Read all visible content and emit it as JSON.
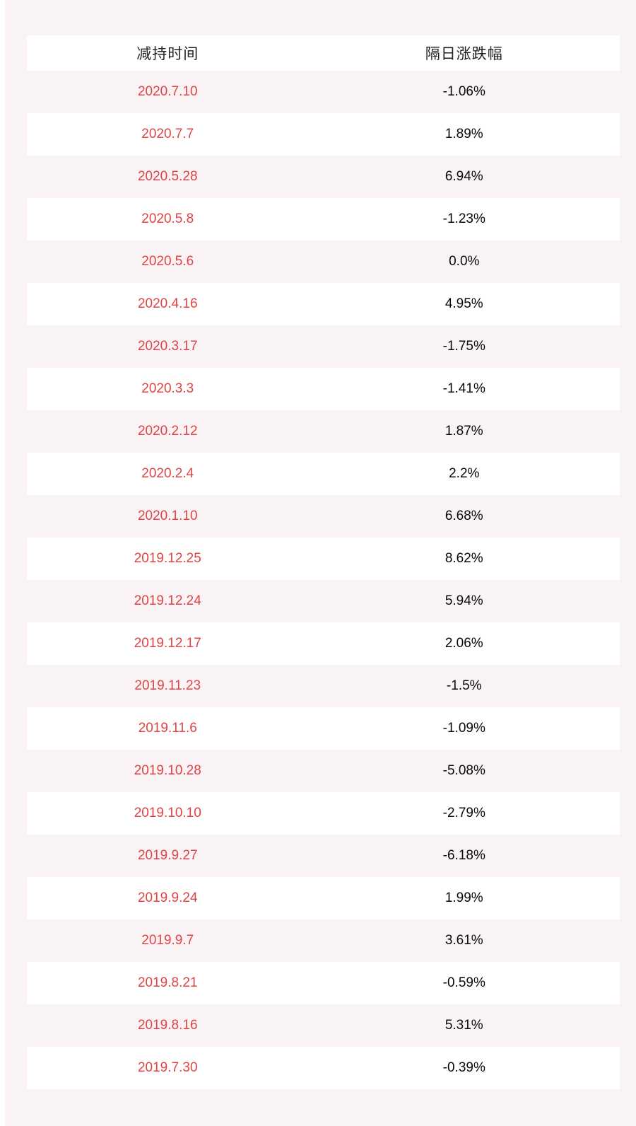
{
  "colors": {
    "page_background": "#f9f3f5",
    "row_white": "#ffffff",
    "date_red": "#e04444",
    "value_black": "#0a0a0a",
    "header_text": "#222222"
  },
  "table": {
    "columns": [
      "减持时间",
      "隔日涨跌幅"
    ],
    "rows": [
      {
        "date": "2020.7.10",
        "change": "-1.06%"
      },
      {
        "date": "2020.7.7",
        "change": "1.89%"
      },
      {
        "date": "2020.5.28",
        "change": "6.94%"
      },
      {
        "date": "2020.5.8",
        "change": "-1.23%"
      },
      {
        "date": "2020.5.6",
        "change": "0.0%"
      },
      {
        "date": "2020.4.16",
        "change": "4.95%"
      },
      {
        "date": "2020.3.17",
        "change": "-1.75%"
      },
      {
        "date": "2020.3.3",
        "change": "-1.41%"
      },
      {
        "date": "2020.2.12",
        "change": "1.87%"
      },
      {
        "date": "2020.2.4",
        "change": "2.2%"
      },
      {
        "date": "2020.1.10",
        "change": "6.68%"
      },
      {
        "date": "2019.12.25",
        "change": "8.62%"
      },
      {
        "date": "2019.12.24",
        "change": "5.94%"
      },
      {
        "date": "2019.12.17",
        "change": "2.06%"
      },
      {
        "date": "2019.11.23",
        "change": "-1.5%"
      },
      {
        "date": "2019.11.6",
        "change": "-1.09%"
      },
      {
        "date": "2019.10.28",
        "change": "-5.08%"
      },
      {
        "date": "2019.10.10",
        "change": "-2.79%"
      },
      {
        "date": "2019.9.27",
        "change": "-6.18%"
      },
      {
        "date": "2019.9.24",
        "change": "1.99%"
      },
      {
        "date": "2019.9.7",
        "change": "3.61%"
      },
      {
        "date": "2019.8.21",
        "change": "-0.59%"
      },
      {
        "date": "2019.8.16",
        "change": "5.31%"
      },
      {
        "date": "2019.7.30",
        "change": "-0.39%"
      }
    ]
  },
  "chart_data": {
    "type": "table",
    "title": "",
    "columns": [
      "减持时间",
      "隔日涨跌幅"
    ],
    "categories": [
      "2020.7.10",
      "2020.7.7",
      "2020.5.28",
      "2020.5.8",
      "2020.5.6",
      "2020.4.16",
      "2020.3.17",
      "2020.3.3",
      "2020.2.12",
      "2020.2.4",
      "2020.1.10",
      "2019.12.25",
      "2019.12.24",
      "2019.12.17",
      "2019.11.23",
      "2019.11.6",
      "2019.10.28",
      "2019.10.10",
      "2019.9.27",
      "2019.9.24",
      "2019.9.7",
      "2019.8.21",
      "2019.8.16",
      "2019.7.30"
    ],
    "values_percent": [
      -1.06,
      1.89,
      6.94,
      -1.23,
      0.0,
      4.95,
      -1.75,
      -1.41,
      1.87,
      2.2,
      6.68,
      8.62,
      5.94,
      2.06,
      -1.5,
      -1.09,
      -5.08,
      -2.79,
      -6.18,
      1.99,
      3.61,
      -0.59,
      5.31,
      -0.39
    ],
    "layout": {
      "header_background": "#ffffff",
      "alternating_rows": true,
      "odd_row_background": "#f9f3f5",
      "even_row_background": "#ffffff"
    }
  }
}
